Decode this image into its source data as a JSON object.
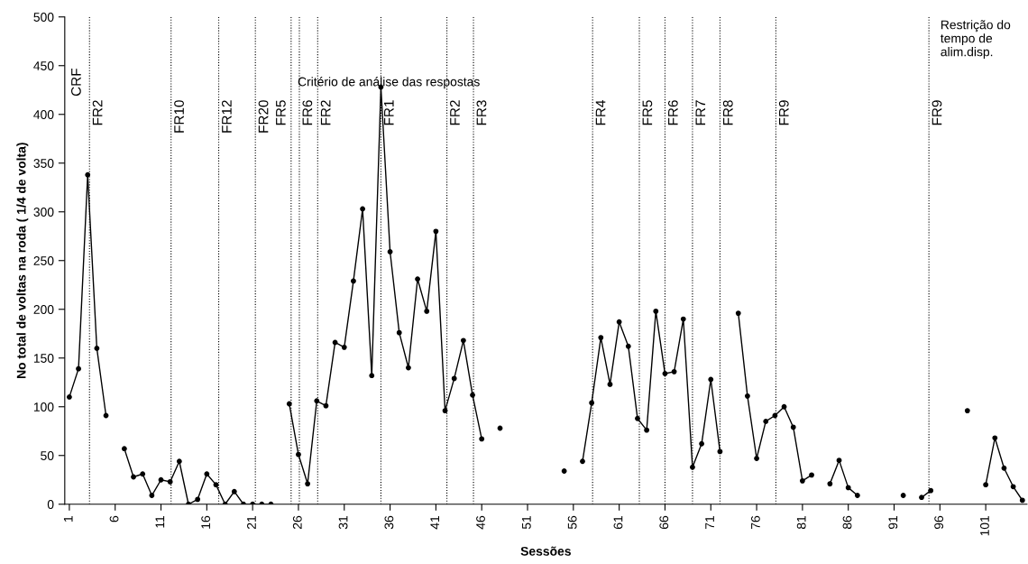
{
  "chart_data": {
    "type": "line",
    "xlabel": "Sessões",
    "ylabel": "No total de voltas na roda ( 1/4 de volta)",
    "x": [
      1,
      2,
      3,
      4,
      5,
      6,
      7,
      8,
      9,
      10,
      11,
      12,
      13,
      14,
      15,
      16,
      17,
      18,
      19,
      20,
      21,
      22,
      23,
      24,
      25,
      26,
      27,
      28,
      29,
      30,
      31,
      32,
      33,
      34,
      35,
      36,
      37,
      38,
      39,
      40,
      41,
      42,
      43,
      44,
      45,
      46,
      47,
      48,
      49,
      50,
      51,
      52,
      53,
      54,
      55,
      56,
      57,
      58,
      59,
      60,
      61,
      62,
      63,
      64,
      65,
      66,
      67,
      68,
      69,
      70,
      71,
      72,
      73,
      74,
      75,
      76,
      77,
      78,
      79,
      80,
      81,
      82,
      83,
      84,
      85,
      86,
      87,
      88,
      89,
      90,
      91,
      92,
      93,
      94,
      95,
      96,
      97,
      98,
      99,
      100,
      101,
      102,
      103,
      104,
      105
    ],
    "series": [
      {
        "color": "#000000",
        "values": [
          110,
          139,
          338,
          160,
          91,
          null,
          57,
          28,
          31,
          9,
          25,
          23,
          44,
          0,
          5,
          31,
          20,
          0,
          13,
          0,
          0,
          0,
          0,
          null,
          103,
          51,
          21,
          106,
          101,
          166,
          161,
          229,
          303,
          132,
          428,
          259,
          176,
          140,
          231,
          198,
          280,
          96,
          129,
          168,
          112,
          67,
          null,
          78,
          null,
          null,
          null,
          null,
          null,
          null,
          34,
          null,
          44,
          104,
          171,
          123,
          187,
          162,
          88,
          76,
          198,
          134,
          136,
          190,
          38,
          62,
          128,
          54,
          null,
          196,
          111,
          47,
          85,
          91,
          100,
          79,
          24,
          30,
          null,
          21,
          45,
          17,
          9,
          null,
          null,
          null,
          null,
          9,
          null,
          7,
          14,
          null,
          null,
          null,
          96,
          null,
          20,
          68,
          37,
          18,
          4
        ]
      }
    ],
    "xlim": [
      0.5,
      105.5
    ],
    "xticks": [
      1,
      6,
      11,
      16,
      21,
      26,
      31,
      36,
      41,
      46,
      51,
      56,
      61,
      66,
      71,
      76,
      81,
      86,
      91,
      96,
      101
    ],
    "ylim": [
      0,
      500
    ],
    "yticks": [
      0,
      50,
      100,
      150,
      200,
      250,
      300,
      350,
      400,
      450,
      500
    ],
    "marker": "circle",
    "line_style": "solid",
    "grid": false,
    "legend": false,
    "ref_lines": [
      {
        "axis": "x",
        "value": 3.2,
        "label": "FR2",
        "line_style": "dotted",
        "color": "#000000"
      },
      {
        "axis": "x",
        "value": 12.1,
        "label": "FR10",
        "line_style": "dotted",
        "color": "#000000"
      },
      {
        "axis": "x",
        "value": 17.3,
        "label": "FR12",
        "line_style": "dotted",
        "color": "#000000"
      },
      {
        "axis": "x",
        "value": 21.3,
        "label": "FR20",
        "line_style": "dotted",
        "color": "#000000"
      },
      {
        "axis": "x",
        "value": 25.2,
        "label": "FR5",
        "line_style": "dotted",
        "color": "#000000"
      },
      {
        "axis": "x",
        "value": 26.1,
        "label": "FR6",
        "line_style": "dotted",
        "color": "#000000"
      },
      {
        "axis": "x",
        "value": 28.1,
        "label": "FR2",
        "line_style": "dotted",
        "color": "#000000"
      },
      {
        "axis": "x",
        "value": 35,
        "label": "FR1",
        "line_style": "dotted",
        "color": "#000000"
      },
      {
        "axis": "x",
        "value": 42.2,
        "label": "FR2",
        "line_style": "dotted",
        "color": "#000000"
      },
      {
        "axis": "x",
        "value": 45.1,
        "label": "FR3",
        "line_style": "dotted",
        "color": "#000000"
      },
      {
        "axis": "x",
        "value": 58.1,
        "label": "FR4",
        "line_style": "dotted",
        "color": "#000000"
      },
      {
        "axis": "x",
        "value": 63.2,
        "label": "FR5",
        "line_style": "dotted",
        "color": "#000000"
      },
      {
        "axis": "x",
        "value": 66,
        "label": "FR6",
        "line_style": "dotted",
        "color": "#000000"
      },
      {
        "axis": "x",
        "value": 69,
        "label": "FR7",
        "line_style": "dotted",
        "color": "#000000"
      },
      {
        "axis": "x",
        "value": 72,
        "label": "FR8",
        "line_style": "dotted",
        "color": "#000000"
      },
      {
        "axis": "x",
        "value": 78.1,
        "label": "FR9",
        "line_style": "dotted",
        "color": "#000000"
      },
      {
        "axis": "x",
        "value": 94.8,
        "label": "FR9",
        "line_style": "dotted",
        "color": "#000000"
      }
    ],
    "annotations": [
      "CRF",
      "Critério de análise das respostas",
      "Restrição do tempo de alim.disp."
    ]
  }
}
